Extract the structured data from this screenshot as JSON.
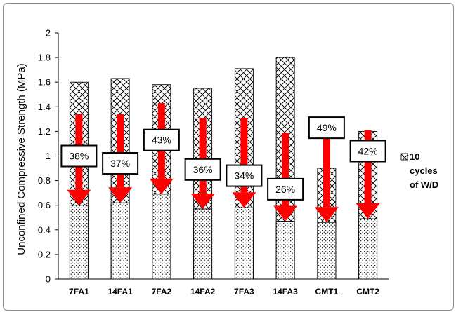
{
  "chart_data": {
    "type": "bar",
    "title": "",
    "xlabel": "",
    "ylabel": "Unconfined Compressive Strength (MPa)",
    "ylim": [
      0,
      2
    ],
    "yticks": [
      "0",
      "0.2",
      "0.4",
      "0.6",
      "0.8",
      "1",
      "1.2",
      "1.4",
      "1.6",
      "1.8",
      "2"
    ],
    "categories": [
      "7FA1",
      "14FA1",
      "7FA2",
      "14FA2",
      "7FA3",
      "14FA3",
      "CMT1",
      "CMT2"
    ],
    "series": [
      {
        "name": "",
        "pattern": "dotted",
        "values": [
          0.6,
          0.62,
          0.69,
          0.57,
          0.58,
          0.47,
          0.46,
          0.49
        ]
      },
      {
        "name": "10 cycles of W/D",
        "pattern": "crosshatch",
        "values": [
          1.6,
          1.63,
          1.58,
          1.55,
          1.71,
          1.8,
          0.9,
          1.2
        ]
      }
    ],
    "annotations": [
      {
        "label": "38%",
        "arrow_from": 1.34,
        "arrow_to": 0.6,
        "label_at": 1.0
      },
      {
        "label": "37%",
        "arrow_from": 1.34,
        "arrow_to": 0.62,
        "label_at": 0.94
      },
      {
        "label": "43%",
        "arrow_from": 1.43,
        "arrow_to": 0.69,
        "label_at": 1.13
      },
      {
        "label": "36%",
        "arrow_from": 1.31,
        "arrow_to": 0.57,
        "label_at": 0.89
      },
      {
        "label": "34%",
        "arrow_from": 1.31,
        "arrow_to": 0.58,
        "label_at": 0.84
      },
      {
        "label": "26%",
        "arrow_from": 1.19,
        "arrow_to": 0.47,
        "label_at": 0.73
      },
      {
        "label": "49%",
        "arrow_from": 1.2,
        "arrow_to": 0.46,
        "label_at": 1.23
      },
      {
        "label": "42%",
        "arrow_from": 1.21,
        "arrow_to": 0.49,
        "label_at": 1.04
      }
    ],
    "legend": {
      "position": "right",
      "lines": [
        "10",
        "cycles",
        "of W/D"
      ]
    },
    "grid": false,
    "colors": {
      "arrow": "#ff0000",
      "bar_fill": "#ffffff",
      "outline": "#000000"
    }
  }
}
